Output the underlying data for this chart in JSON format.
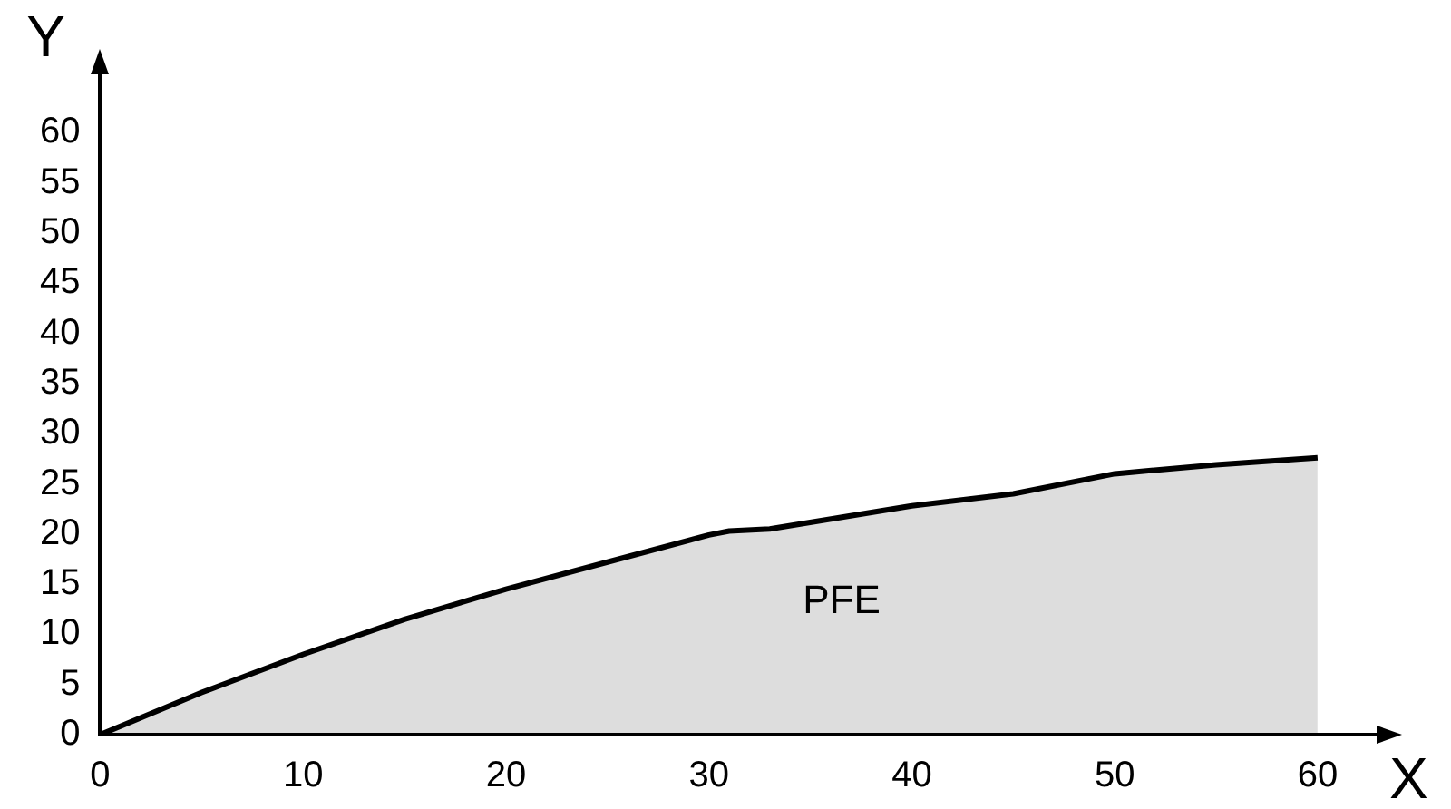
{
  "chart_data": {
    "type": "area",
    "xlabel": "X",
    "ylabel": "Y",
    "x": [
      0,
      5,
      10,
      15,
      20,
      25,
      30,
      31,
      33,
      40,
      45,
      50,
      55,
      60
    ],
    "series": [
      {
        "color": "#000000",
        "values": [
          0,
          4.2,
          8,
          11.5,
          14.5,
          17.2,
          19.9,
          20.3,
          20.5,
          22.8,
          24,
          26,
          26.9,
          27.6
        ]
      }
    ],
    "xlim": [
      0,
      63
    ],
    "ylim": [
      0,
      66
    ],
    "xticks": [
      0,
      10,
      20,
      30,
      40,
      50,
      60
    ],
    "yticks": [
      0,
      5,
      10,
      15,
      20,
      25,
      30,
      35,
      40,
      45,
      50,
      55,
      60
    ],
    "grid": false,
    "legend": false,
    "marker": "none",
    "line_style": "solid",
    "annotations": [
      "PFE"
    ]
  }
}
